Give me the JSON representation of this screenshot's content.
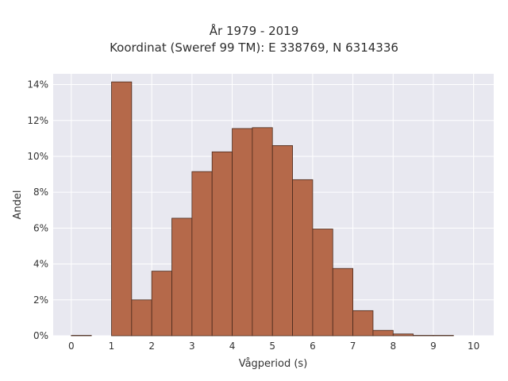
{
  "chart_data": {
    "type": "bar",
    "title": "År 1979 - 2019",
    "subtitle": "Koordinat (Sweref 99 TM): E 338769, N 6314336",
    "xlabel": "Vågperiod (s)",
    "ylabel": "Andel",
    "bin_width": 0.5,
    "bins": [
      {
        "x0": 0.0,
        "x1": 0.5,
        "value": 0.0
      },
      {
        "x0": 1.0,
        "x1": 1.5,
        "value": 14.15
      },
      {
        "x0": 1.5,
        "x1": 2.0,
        "value": 2.0
      },
      {
        "x0": 2.0,
        "x1": 2.5,
        "value": 3.6
      },
      {
        "x0": 2.5,
        "x1": 3.0,
        "value": 6.55
      },
      {
        "x0": 3.0,
        "x1": 3.5,
        "value": 9.15
      },
      {
        "x0": 3.5,
        "x1": 4.0,
        "value": 10.25
      },
      {
        "x0": 4.0,
        "x1": 4.5,
        "value": 11.55
      },
      {
        "x0": 4.5,
        "x1": 5.0,
        "value": 11.6
      },
      {
        "x0": 5.0,
        "x1": 5.5,
        "value": 10.6
      },
      {
        "x0": 5.5,
        "x1": 6.0,
        "value": 8.7
      },
      {
        "x0": 6.0,
        "x1": 6.5,
        "value": 5.95
      },
      {
        "x0": 6.5,
        "x1": 7.0,
        "value": 3.75
      },
      {
        "x0": 7.0,
        "x1": 7.5,
        "value": 1.4
      },
      {
        "x0": 7.5,
        "x1": 8.0,
        "value": 0.3
      },
      {
        "x0": 8.0,
        "x1": 8.5,
        "value": 0.1
      },
      {
        "x0": 8.5,
        "x1": 9.0,
        "value": 0.02
      },
      {
        "x0": 9.0,
        "x1": 9.5,
        "value": 0.01
      }
    ],
    "xlim": [
      -0.45,
      10.5
    ],
    "ylim": [
      0,
      14.6
    ],
    "xticks": [
      0,
      1,
      2,
      3,
      4,
      5,
      6,
      7,
      8,
      9,
      10
    ],
    "yticks": [
      0,
      2,
      4,
      6,
      8,
      10,
      12,
      14
    ],
    "ytick_labels": [
      "0%",
      "2%",
      "4%",
      "6%",
      "8%",
      "10%",
      "12%",
      "14%"
    ],
    "grid": true,
    "colors": {
      "bar_fill": "#b5694a",
      "bar_edge": "#4a2a1c",
      "plot_background": "#e8e8f0",
      "grid": "#ffffff"
    }
  }
}
